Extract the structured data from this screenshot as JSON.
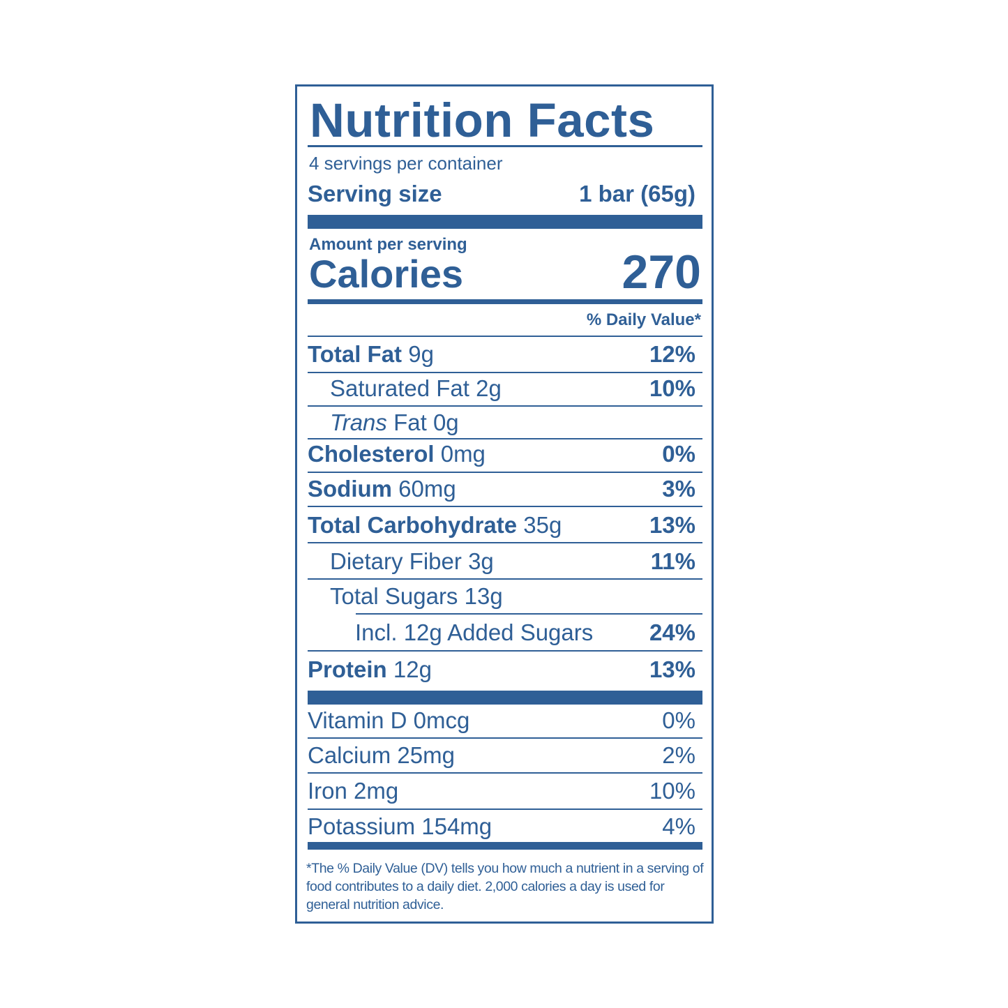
{
  "label": {
    "title": "Nutrition Facts",
    "servings_per_container": "4 servings per container",
    "serving_size_label": "Serving size",
    "serving_size_value": "1 bar (65g)",
    "amount_per_serving": "Amount per serving",
    "calories_label": "Calories",
    "calories_value": "270",
    "daily_value_header": "% Daily Value*",
    "nutrients": [
      {
        "name": "Total Fat",
        "amount": "9g",
        "dv": "12%"
      },
      {
        "name": "Saturated Fat",
        "amount": "2g",
        "dv": "10%"
      },
      {
        "name_italic": "Trans",
        "name": "Fat",
        "amount": "0g",
        "dv": ""
      },
      {
        "name": "Cholesterol",
        "amount": "0mg",
        "dv": "0%"
      },
      {
        "name": "Sodium",
        "amount": "60mg",
        "dv": "3%"
      },
      {
        "name": "Total Carbohydrate",
        "amount": "35g",
        "dv": "13%"
      },
      {
        "name": "Dietary Fiber",
        "amount": "3g",
        "dv": "11%"
      },
      {
        "name": "Total Sugars",
        "amount": "13g",
        "dv": ""
      },
      {
        "name": "Incl. 12g Added Sugars",
        "amount": "",
        "dv": "24%"
      },
      {
        "name": "Protein",
        "amount": "12g",
        "dv": "13%"
      }
    ],
    "vitamins": [
      {
        "name": "Vitamin D",
        "amount": "0mcg",
        "dv": "0%"
      },
      {
        "name": "Calcium",
        "amount": "25mg",
        "dv": "2%"
      },
      {
        "name": "Iron",
        "amount": "2mg",
        "dv": "10%"
      },
      {
        "name": "Potassium",
        "amount": "154mg",
        "dv": "4%"
      }
    ],
    "footnote": "*The % Daily Value (DV) tells you how much a nutrient in a serving of food contributes to a daily diet. 2,000 calories a day is used for general nutrition advice.",
    "color": "#2f5f96"
  }
}
